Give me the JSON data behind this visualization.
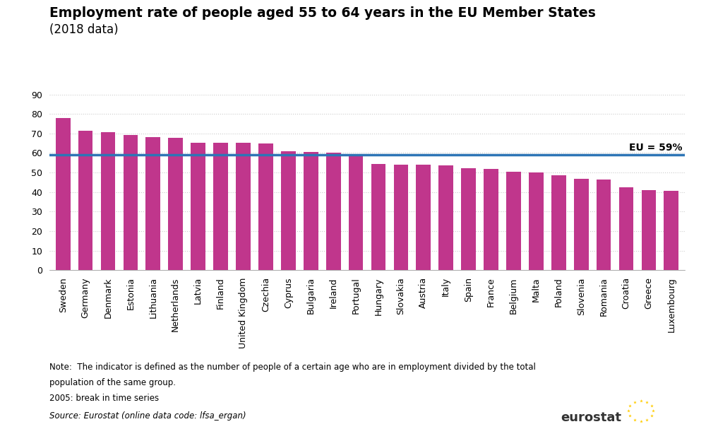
{
  "title_line1": "Employment rate of people aged 55 to 64 years in the EU Member States",
  "title_line2": "(2018 data)",
  "categories": [
    "Sweden",
    "Germany",
    "Denmark",
    "Estonia",
    "Lithuania",
    "Netherlands",
    "Latvia",
    "Finland",
    "United Kingdom",
    "Czechia",
    "Cyprus",
    "Bulgaria",
    "Ireland",
    "Portugal",
    "Hungary",
    "Slovakia",
    "Austria",
    "Italy",
    "Spain",
    "France",
    "Belgium",
    "Malta",
    "Poland",
    "Slovenia",
    "Romania",
    "Croatia",
    "Greece",
    "Luxembourg"
  ],
  "values": [
    77.8,
    71.4,
    70.8,
    69.1,
    68.2,
    67.6,
    65.3,
    65.3,
    65.2,
    65.0,
    60.8,
    60.6,
    60.3,
    58.6,
    54.4,
    54.0,
    54.0,
    53.7,
    52.2,
    51.9,
    50.3,
    50.2,
    48.7,
    46.8,
    46.3,
    42.6,
    41.0,
    40.6
  ],
  "bar_color": "#C0368C",
  "eu_line_value": 59,
  "eu_line_color": "#2E75B6",
  "eu_label": "EU = 59%",
  "ylim": [
    0,
    90
  ],
  "yticks": [
    0,
    10,
    20,
    30,
    40,
    50,
    60,
    70,
    80,
    90
  ],
  "grid_color": "#AAAAAA",
  "grid_style": "--",
  "grid_alpha": 0.6,
  "note_line1": "Note:  The indicator is defined as the number of people of a certain age who are in employment divided by the total",
  "note_line2": "population of the same group.",
  "note_line3": "2005: break in time series",
  "source_text": "Source: Eurostat (online data code: lfsa_ergan)",
  "background_color": "#FFFFFF",
  "title_fontsize": 13.5,
  "subtitle_fontsize": 12,
  "tick_fontsize": 9,
  "eu_label_fontsize": 10,
  "note_fontsize": 8.5,
  "source_fontsize": 8.5,
  "eurostat_fontsize": 13
}
